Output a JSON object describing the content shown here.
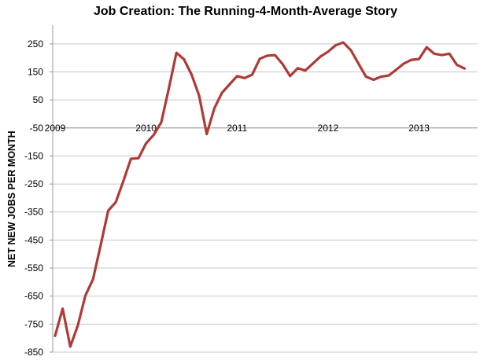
{
  "chart_data": {
    "type": "line",
    "title": "Job Creation: The Running-4-Month-Average Story",
    "xlabel": "",
    "ylabel": "NET NEW JOBS PER MONTH",
    "ylim": [
      -850,
      300
    ],
    "y_ticks": [
      250,
      150,
      50,
      -50,
      -150,
      -250,
      -350,
      -450,
      -550,
      -650,
      -750,
      -850
    ],
    "x_tick_labels": [
      "2009",
      "2010",
      "2011",
      "2012",
      "2013"
    ],
    "grid": true,
    "legend": "none",
    "series": [
      {
        "color": "#b03a37",
        "x": [
          "2009-01",
          "2009-02",
          "2009-03",
          "2009-04",
          "2009-05",
          "2009-06",
          "2009-07",
          "2009-08",
          "2009-09",
          "2009-10",
          "2009-11",
          "2009-12",
          "2010-01",
          "2010-02",
          "2010-03",
          "2010-04",
          "2010-05",
          "2010-06",
          "2010-07",
          "2010-08",
          "2010-09",
          "2010-10",
          "2010-11",
          "2010-12",
          "2011-01",
          "2011-02",
          "2011-03",
          "2011-04",
          "2011-05",
          "2011-06",
          "2011-07",
          "2011-08",
          "2011-09",
          "2011-10",
          "2011-11",
          "2011-12",
          "2012-01",
          "2012-02",
          "2012-03",
          "2012-04",
          "2012-05",
          "2012-06",
          "2012-07",
          "2012-08",
          "2012-09",
          "2012-10",
          "2012-11",
          "2012-12",
          "2013-01",
          "2013-02",
          "2013-03",
          "2013-04",
          "2013-05",
          "2013-06",
          "2013-07"
        ],
        "values": [
          -792,
          -695,
          -830,
          -755,
          -648,
          -590,
          -470,
          -345,
          -315,
          -240,
          -160,
          -158,
          -105,
          -75,
          -30,
          90,
          218,
          195,
          140,
          65,
          -72,
          20,
          75,
          105,
          135,
          128,
          140,
          197,
          208,
          210,
          178,
          135,
          163,
          155,
          180,
          205,
          222,
          245,
          255,
          228,
          180,
          133,
          122,
          133,
          137,
          158,
          180,
          193,
          196,
          238,
          215,
          210,
          215,
          175,
          162
        ]
      }
    ]
  }
}
